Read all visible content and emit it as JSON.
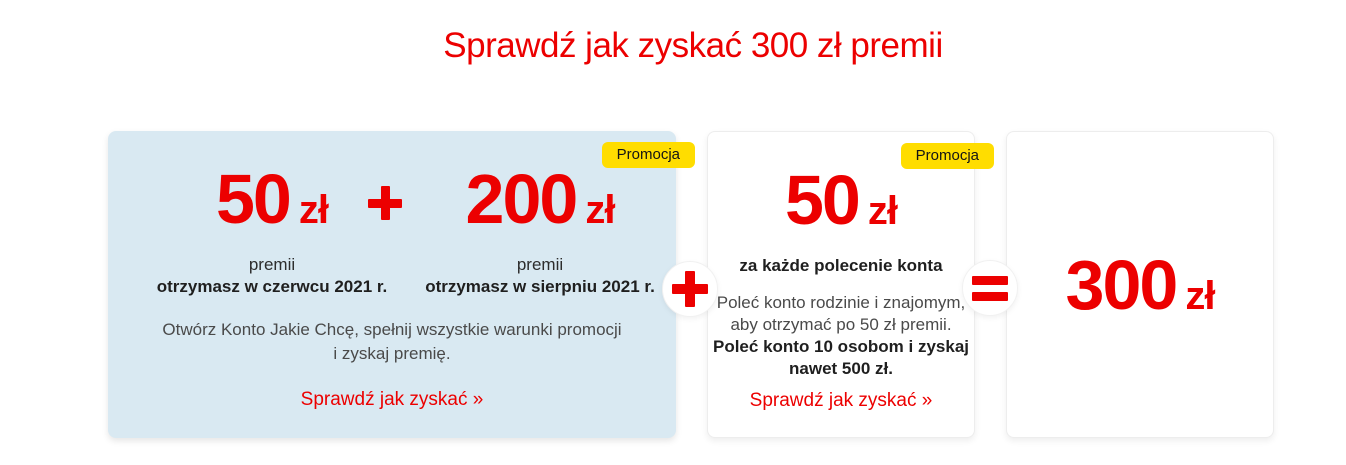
{
  "colors": {
    "red": "#ec0000",
    "badge_yellow": "#ffdd00",
    "card_blue": "#d9e9f2"
  },
  "header": {
    "title": "Sprawdź jak zyskać 300 zł premii"
  },
  "cards": {
    "account_bonus": {
      "badge": "Promocja",
      "june": {
        "value": "50",
        "currency": "zł",
        "caption1": "premii",
        "caption2": "otrzymasz w czerwcu 2021 r."
      },
      "august": {
        "value": "200",
        "currency": "zł",
        "caption1": "premii",
        "caption2": "otrzymasz w sierpniu 2021 r."
      },
      "description1": "Otwórz Konto Jakie Chcę, spełnij wszystkie warunki promocji",
      "description2": "i zyskaj premię.",
      "link": "Sprawdź jak zyskać »"
    },
    "referral": {
      "badge": "Promocja",
      "amount": {
        "value": "50",
        "currency": "zł"
      },
      "subtitle": "za każde polecenie konta",
      "description1": "Poleć konto rodzinie i znajomym,",
      "description2": "aby otrzymać po 50 zł premii.",
      "description_bold1": "Poleć konto 10 osobom i zyskaj",
      "description_bold2": "nawet 500 zł.",
      "link": "Sprawdź jak zyskać »"
    },
    "total": {
      "value": "300",
      "currency": "zł"
    }
  },
  "icons": {
    "plus_between_amounts": "plus-icon",
    "plus_between_cards": "plus-icon",
    "equals_before_total": "equals-icon"
  }
}
